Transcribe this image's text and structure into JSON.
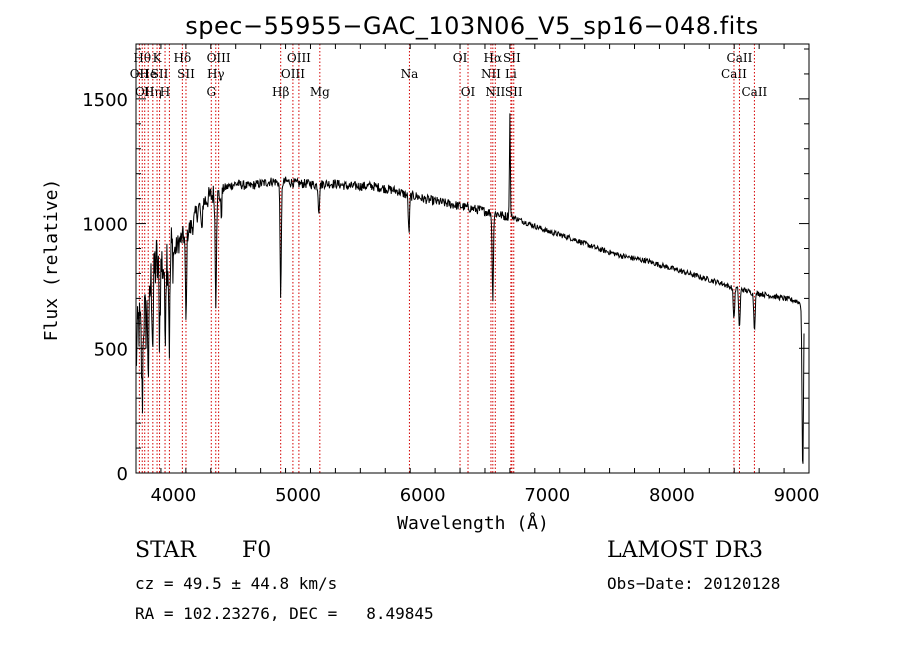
{
  "chart_data": {
    "type": "line",
    "title": "spec−55955−GAC_103N06_V5_sp16−048.fits",
    "xlabel": "Wavelength (Å)",
    "ylabel": "Flux (relative)",
    "xlim": [
      3700,
      9100
    ],
    "ylim": [
      0,
      1720
    ],
    "xticks": [
      4000,
      5000,
      6000,
      7000,
      8000,
      9000
    ],
    "yticks": [
      0,
      500,
      1000,
      1500
    ],
    "series": [
      {
        "name": "flux",
        "x": [
          3700,
          3720,
          3740,
          3760,
          3780,
          3800,
          3830,
          3860,
          3890,
          3920,
          3950,
          3980,
          4000,
          4050,
          4100,
          4150,
          4200,
          4250,
          4300,
          4330,
          4360,
          4400,
          4500,
          4600,
          4700,
          4800,
          4861,
          4900,
          5000,
          5100,
          5167,
          5200,
          5300,
          5400,
          5500,
          5600,
          5700,
          5800,
          5890,
          5950,
          6000,
          6100,
          6200,
          6300,
          6400,
          6500,
          6563,
          6600,
          6650,
          6680,
          6700,
          6750,
          6800,
          6900,
          7000,
          7200,
          7400,
          7600,
          7800,
          8000,
          8200,
          8400,
          8498,
          8542,
          8600,
          8662,
          8700,
          8800,
          8900,
          9000,
          9030,
          9050,
          9060
        ],
        "y": [
          450,
          600,
          560,
          650,
          600,
          720,
          780,
          840,
          820,
          850,
          880,
          900,
          880,
          930,
          960,
          990,
          1060,
          1090,
          1110,
          1120,
          1110,
          1140,
          1160,
          1150,
          1160,
          1170,
          1160,
          1170,
          1160,
          1160,
          1150,
          1160,
          1160,
          1150,
          1150,
          1150,
          1140,
          1130,
          1110,
          1110,
          1100,
          1090,
          1080,
          1070,
          1060,
          1050,
          1040,
          1040,
          1030,
          1030,
          1030,
          1020,
          1010,
          990,
          970,
          940,
          900,
          870,
          850,
          820,
          790,
          760,
          740,
          740,
          730,
          720,
          720,
          710,
          700,
          690,
          680,
          690,
          700
        ]
      }
    ],
    "emission_features": [
      {
        "wavelength": 6700,
        "peak_flux": 1440,
        "label": "Li"
      }
    ],
    "absorption_features": [
      {
        "wavelength": 3750,
        "depth": 320
      },
      {
        "wavelength": 3800,
        "depth": 300
      },
      {
        "wavelength": 3835,
        "depth": 260
      },
      {
        "wavelength": 3889,
        "depth": 240
      },
      {
        "wavelength": 3933,
        "depth": 280
      },
      {
        "wavelength": 3968,
        "depth": 360
      },
      {
        "wavelength": 4101,
        "depth": 360
      },
      {
        "wavelength": 4226,
        "depth": 120
      },
      {
        "wavelength": 4340,
        "depth": 420
      },
      {
        "wavelength": 4384,
        "depth": 90
      },
      {
        "wavelength": 4861,
        "depth": 450
      },
      {
        "wavelength": 5167,
        "depth": 100
      },
      {
        "wavelength": 5890,
        "depth": 150
      },
      {
        "wavelength": 6563,
        "depth": 340
      },
      {
        "wavelength": 8498,
        "depth": 120
      },
      {
        "wavelength": 8542,
        "depth": 160
      },
      {
        "wavelength": 8662,
        "depth": 140
      },
      {
        "wavelength": 9050,
        "depth": 690
      }
    ],
    "line_markers": [
      {
        "wavelength": 3727,
        "label": "OII",
        "row": 2
      },
      {
        "wavelength": 3750,
        "label": "Hθ",
        "row": 1
      },
      {
        "wavelength": 3770,
        "label": "OII",
        "row": 3
      },
      {
        "wavelength": 3798,
        "label": "He",
        "row": 2
      },
      {
        "wavelength": 3835,
        "label": "Hη",
        "row": 3
      },
      {
        "wavelength": 3869,
        "label": "K",
        "row": 1
      },
      {
        "wavelength": 3889,
        "label": "SII",
        "row": 2
      },
      {
        "wavelength": 3933,
        "label": "H",
        "row": 3
      },
      {
        "wavelength": 3968,
        "label": "",
        "row": 0
      },
      {
        "wavelength": 4072,
        "label": "Hδ",
        "row": 1
      },
      {
        "wavelength": 4101,
        "label": "SII",
        "row": 2
      },
      {
        "wavelength": 4304,
        "label": "G",
        "row": 3
      },
      {
        "wavelength": 4340,
        "label": "Hγ",
        "row": 2
      },
      {
        "wavelength": 4363,
        "label": "OIII",
        "row": 1
      },
      {
        "wavelength": 4861,
        "label": "Hβ",
        "row": 3
      },
      {
        "wavelength": 4959,
        "label": "OIII",
        "row": 2
      },
      {
        "wavelength": 5007,
        "label": "OIII",
        "row": 1
      },
      {
        "wavelength": 5175,
        "label": "Mg",
        "row": 3
      },
      {
        "wavelength": 5894,
        "label": "Na",
        "row": 2
      },
      {
        "wavelength": 6300,
        "label": "OI",
        "row": 1
      },
      {
        "wavelength": 6364,
        "label": "OI",
        "row": 3
      },
      {
        "wavelength": 6548,
        "label": "NII",
        "row": 2
      },
      {
        "wavelength": 6563,
        "label": "Hα",
        "row": 1
      },
      {
        "wavelength": 6583,
        "label": "NII",
        "row": 3
      },
      {
        "wavelength": 6708,
        "label": "Li",
        "row": 2
      },
      {
        "wavelength": 6716,
        "label": "SII",
        "row": 1
      },
      {
        "wavelength": 6731,
        "label": "SII",
        "row": 3
      },
      {
        "wavelength": 8498,
        "label": "CaII",
        "row": 2
      },
      {
        "wavelength": 8542,
        "label": "CaII",
        "row": 1
      },
      {
        "wavelength": 8662,
        "label": "CaII",
        "row": 3
      }
    ]
  },
  "info": {
    "object_class": "STAR",
    "subclass": "F0",
    "survey": "LAMOST DR3",
    "cz": "cz = 49.5 ± 44.8 km/s",
    "obs_date": "Obs−Date: 20120128",
    "coords": "RA = 102.23276, DEC =   8.49845"
  }
}
